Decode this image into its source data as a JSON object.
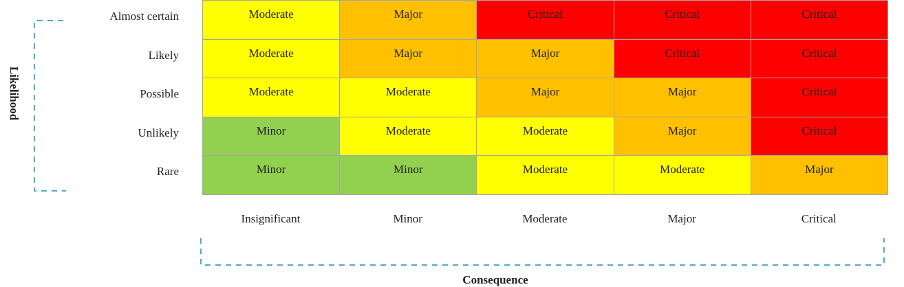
{
  "y_axis": {
    "title": "Likelihood",
    "labels": [
      "Almost certain",
      "Likely",
      "Possible",
      "Unlikely",
      "Rare"
    ]
  },
  "x_axis": {
    "title": "Consequence",
    "labels": [
      "Insignificant",
      "Minor",
      "Moderate",
      "Major",
      "Critical"
    ]
  },
  "matrix": {
    "rows": [
      [
        {
          "label": "Moderate",
          "color": "#ffff00"
        },
        {
          "label": "Major",
          "color": "#ffc000"
        },
        {
          "label": "Critical",
          "color": "#ff0000"
        },
        {
          "label": "Critical",
          "color": "#ff0000"
        },
        {
          "label": "Critical",
          "color": "#ff0000"
        }
      ],
      [
        {
          "label": "Moderate",
          "color": "#ffff00"
        },
        {
          "label": "Major",
          "color": "#ffc000"
        },
        {
          "label": "Major",
          "color": "#ffc000"
        },
        {
          "label": "Critical",
          "color": "#ff0000"
        },
        {
          "label": "Critical",
          "color": "#ff0000"
        }
      ],
      [
        {
          "label": "Moderate",
          "color": "#ffff00"
        },
        {
          "label": "Moderate",
          "color": "#ffff00"
        },
        {
          "label": "Major",
          "color": "#ffc000"
        },
        {
          "label": "Major",
          "color": "#ffc000"
        },
        {
          "label": "Critical",
          "color": "#ff0000"
        }
      ],
      [
        {
          "label": "Minor",
          "color": "#92d050"
        },
        {
          "label": "Moderate",
          "color": "#ffff00"
        },
        {
          "label": "Moderate",
          "color": "#ffff00"
        },
        {
          "label": "Major",
          "color": "#ffc000"
        },
        {
          "label": "Critical",
          "color": "#ff0000"
        }
      ],
      [
        {
          "label": "Minor",
          "color": "#92d050"
        },
        {
          "label": "Minor",
          "color": "#92d050"
        },
        {
          "label": "Moderate",
          "color": "#ffff00"
        },
        {
          "label": "Moderate",
          "color": "#ffff00"
        },
        {
          "label": "Major",
          "color": "#ffc000"
        }
      ]
    ]
  }
}
